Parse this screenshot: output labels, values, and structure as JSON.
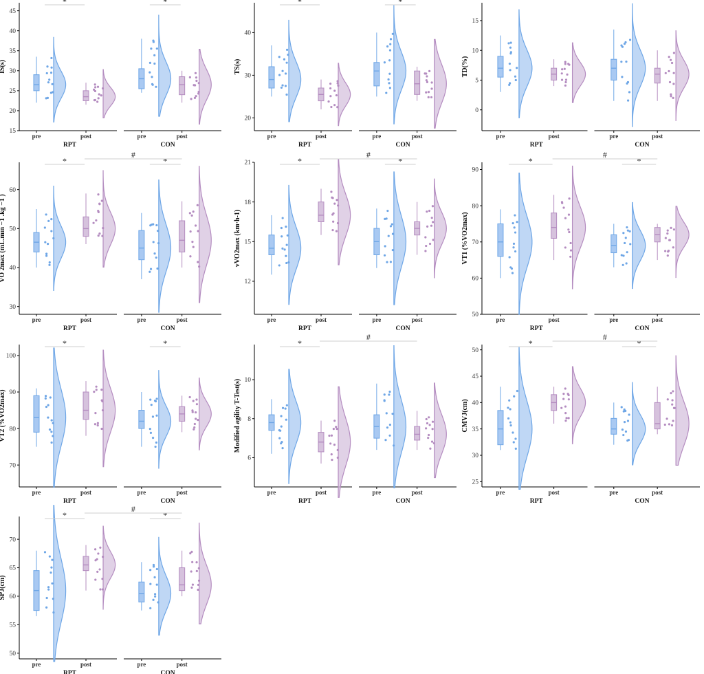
{
  "colors": {
    "pre": "#6ea6e6",
    "pre_fill": "#a9c9f2",
    "post": "#b48cc0",
    "post_fill": "#d6c2dd",
    "axis": "#000000"
  },
  "chart_data": [
    {
      "type": "raincloud",
      "ylabel": "IS(s)",
      "ylim": [
        15,
        47
      ],
      "yticks": [
        15,
        20,
        25,
        30,
        35,
        40,
        45
      ],
      "groups": [
        "RPT",
        "CON"
      ],
      "conditions": [
        "pre",
        "post"
      ],
      "within_sig": [
        "*",
        "*"
      ],
      "between_sig": "",
      "boxes": [
        {
          "group": "RPT",
          "cond": "pre",
          "min": 22,
          "q1": 25,
          "median": 26.5,
          "q3": 29,
          "max": 33.5
        },
        {
          "group": "RPT",
          "cond": "post",
          "min": 21.5,
          "q1": 22.5,
          "median": 23.5,
          "q3": 25,
          "max": 27
        },
        {
          "group": "CON",
          "cond": "pre",
          "min": 24.5,
          "q1": 25.5,
          "median": 28,
          "q3": 30.5,
          "max": 38
        },
        {
          "group": "CON",
          "cond": "post",
          "min": 22,
          "q1": 24,
          "median": 26.5,
          "q3": 28.5,
          "max": 30
        }
      ]
    },
    {
      "type": "raincloud",
      "ylabel": "TS(s)",
      "ylim": [
        17,
        47
      ],
      "yticks": [
        20,
        30,
        40
      ],
      "groups": [
        "RPT",
        "CON"
      ],
      "conditions": [
        "pre",
        "post"
      ],
      "within_sig": [
        "*",
        "*"
      ],
      "between_sig": "",
      "boxes": [
        {
          "group": "RPT",
          "cond": "pre",
          "min": 25,
          "q1": 27,
          "median": 29,
          "q3": 32,
          "max": 37
        },
        {
          "group": "RPT",
          "cond": "post",
          "min": 22,
          "q1": 24,
          "median": 25.5,
          "q3": 27,
          "max": 29
        },
        {
          "group": "CON",
          "cond": "pre",
          "min": 25,
          "q1": 27.5,
          "median": 31,
          "q3": 33,
          "max": 40
        },
        {
          "group": "CON",
          "cond": "post",
          "min": 24,
          "q1": 25.5,
          "median": 28,
          "q3": 31,
          "max": 32
        }
      ]
    },
    {
      "type": "raincloud",
      "ylabel": "TD(%)",
      "ylim": [
        -3.5,
        18
      ],
      "yticks": [
        0,
        5,
        10,
        15
      ],
      "groups": [
        "RPT",
        "CON"
      ],
      "conditions": [
        "pre",
        "post"
      ],
      "within_sig": [
        "",
        ""
      ],
      "between_sig": "",
      "boxes": [
        {
          "group": "RPT",
          "cond": "pre",
          "min": 3,
          "q1": 5.5,
          "median": 7,
          "q3": 9,
          "max": 12.5
        },
        {
          "group": "RPT",
          "cond": "post",
          "min": 4,
          "q1": 5,
          "median": 6,
          "q3": 7,
          "max": 8.5
        },
        {
          "group": "CON",
          "cond": "pre",
          "min": 1.5,
          "q1": 5,
          "median": 7,
          "q3": 8.5,
          "max": 13.5
        },
        {
          "group": "CON",
          "cond": "post",
          "min": 1.5,
          "q1": 4.5,
          "median": 6,
          "q3": 7,
          "max": 10
        }
      ]
    },
    {
      "type": "raincloud",
      "ylabel": "VO 2max (mL.min −1 .kg −1 )",
      "ylim": [
        28,
        67
      ],
      "yticks": [
        30,
        40,
        50,
        60
      ],
      "groups": [
        "RPT",
        "CON"
      ],
      "conditions": [
        "pre",
        "post"
      ],
      "within_sig": [
        "*",
        "*"
      ],
      "between_sig": "#",
      "boxes": [
        {
          "group": "RPT",
          "cond": "pre",
          "min": 40,
          "q1": 44,
          "median": 46.5,
          "q3": 49,
          "max": 55
        },
        {
          "group": "RPT",
          "cond": "post",
          "min": 46,
          "q1": 48,
          "median": 50,
          "q3": 53,
          "max": 59
        },
        {
          "group": "CON",
          "cond": "pre",
          "min": 37,
          "q1": 42,
          "median": 45,
          "q3": 49.5,
          "max": 54
        },
        {
          "group": "CON",
          "cond": "post",
          "min": 40,
          "q1": 44,
          "median": 47,
          "q3": 52,
          "max": 57
        }
      ]
    },
    {
      "type": "raincloud",
      "ylabel": "vVO2max (km·h-1)",
      "ylim": [
        9.5,
        21
      ],
      "yticks": [
        12,
        15,
        18,
        21
      ],
      "groups": [
        "RPT",
        "CON"
      ],
      "conditions": [
        "pre",
        "post"
      ],
      "within_sig": [
        "*",
        "*"
      ],
      "between_sig": "#",
      "boxes": [
        {
          "group": "RPT",
          "cond": "pre",
          "min": 12.5,
          "q1": 14,
          "median": 14.5,
          "q3": 15.5,
          "max": 17
        },
        {
          "group": "RPT",
          "cond": "post",
          "min": 15.5,
          "q1": 16.5,
          "median": 17,
          "q3": 18,
          "max": 19
        },
        {
          "group": "CON",
          "cond": "pre",
          "min": 13,
          "q1": 14,
          "median": 15,
          "q3": 16,
          "max": 17.5
        },
        {
          "group": "CON",
          "cond": "post",
          "min": 14,
          "q1": 15.5,
          "median": 16,
          "q3": 16.5,
          "max": 18
        }
      ]
    },
    {
      "type": "raincloud",
      "ylabel": "VT1 (%VO2max)",
      "ylim": [
        50,
        92
      ],
      "yticks": [
        50,
        60,
        70,
        80,
        90
      ],
      "groups": [
        "RPT",
        "CON"
      ],
      "conditions": [
        "pre",
        "post"
      ],
      "within_sig": [
        "*",
        "*"
      ],
      "between_sig": "#",
      "boxes": [
        {
          "group": "RPT",
          "cond": "pre",
          "min": 60,
          "q1": 66,
          "median": 70,
          "q3": 75,
          "max": 79
        },
        {
          "group": "RPT",
          "cond": "post",
          "min": 65,
          "q1": 71,
          "median": 74,
          "q3": 78,
          "max": 83
        },
        {
          "group": "CON",
          "cond": "pre",
          "min": 63,
          "q1": 67,
          "median": 69,
          "q3": 72,
          "max": 75
        },
        {
          "group": "CON",
          "cond": "post",
          "min": 65,
          "q1": 70,
          "median": 72,
          "q3": 74,
          "max": 75
        }
      ]
    },
    {
      "type": "raincloud",
      "ylabel": "VT2 (%VO2max)",
      "ylim": [
        64,
        103
      ],
      "yticks": [
        70,
        80,
        90,
        100
      ],
      "groups": [
        "RPT",
        "CON"
      ],
      "conditions": [
        "pre",
        "post"
      ],
      "within_sig": [
        "*",
        "*"
      ],
      "between_sig": "",
      "boxes": [
        {
          "group": "RPT",
          "cond": "pre",
          "min": 75,
          "q1": 79,
          "median": 83,
          "q3": 89,
          "max": 91
        },
        {
          "group": "RPT",
          "cond": "post",
          "min": 78,
          "q1": 82.5,
          "median": 85,
          "q3": 90,
          "max": 93
        },
        {
          "group": "CON",
          "cond": "pre",
          "min": 75,
          "q1": 80,
          "median": 82,
          "q3": 85,
          "max": 90
        },
        {
          "group": "CON",
          "cond": "post",
          "min": 79,
          "q1": 82,
          "median": 84,
          "q3": 86,
          "max": 89
        }
      ]
    },
    {
      "type": "raincloud",
      "ylabel": "Modified agility T-Test(s)",
      "ylim": [
        4.5,
        11.8
      ],
      "yticks": [
        6,
        8,
        10
      ],
      "groups": [
        "RPT",
        "CON"
      ],
      "conditions": [
        "pre",
        "post"
      ],
      "within_sig": [
        "*",
        ""
      ],
      "between_sig": "#",
      "boxes": [
        {
          "group": "RPT",
          "cond": "pre",
          "min": 6.2,
          "q1": 7.4,
          "median": 7.8,
          "q3": 8.2,
          "max": 9
        },
        {
          "group": "RPT",
          "cond": "post",
          "min": 5.7,
          "q1": 6.3,
          "median": 6.8,
          "q3": 7.3,
          "max": 7.9
        },
        {
          "group": "CON",
          "cond": "pre",
          "min": 6.4,
          "q1": 7.0,
          "median": 7.6,
          "q3": 8.2,
          "max": 9.8
        },
        {
          "group": "CON",
          "cond": "post",
          "min": 6.4,
          "q1": 6.9,
          "median": 7.2,
          "q3": 7.6,
          "max": 8.4
        }
      ]
    },
    {
      "type": "raincloud",
      "ylabel": "CMVJ(cm)",
      "ylim": [
        24,
        51
      ],
      "yticks": [
        25,
        30,
        35,
        40,
        45,
        50
      ],
      "groups": [
        "RPT",
        "CON"
      ],
      "conditions": [
        "pre",
        "post"
      ],
      "within_sig": [
        "*",
        "*"
      ],
      "between_sig": "#",
      "boxes": [
        {
          "group": "RPT",
          "cond": "pre",
          "min": 31,
          "q1": 32,
          "median": 35,
          "q3": 38.5,
          "max": 43
        },
        {
          "group": "RPT",
          "cond": "post",
          "min": 36,
          "q1": 38.5,
          "median": 40,
          "q3": 41.5,
          "max": 43
        },
        {
          "group": "CON",
          "cond": "pre",
          "min": 32,
          "q1": 34,
          "median": 35,
          "q3": 37,
          "max": 40
        },
        {
          "group": "CON",
          "cond": "post",
          "min": 34,
          "q1": 35,
          "median": 36,
          "q3": 40,
          "max": 43
        }
      ]
    },
    {
      "type": "raincloud",
      "ylabel": "SPJ(cm)",
      "ylim": [
        49,
        74
      ],
      "yticks": [
        50,
        55,
        60,
        65,
        70
      ],
      "groups": [
        "RPT",
        "CON"
      ],
      "conditions": [
        "pre",
        "post"
      ],
      "within_sig": [
        "*",
        "*"
      ],
      "between_sig": "#",
      "boxes": [
        {
          "group": "RPT",
          "cond": "pre",
          "min": 56.5,
          "q1": 57.5,
          "median": 61,
          "q3": 64.5,
          "max": 68
        },
        {
          "group": "RPT",
          "cond": "post",
          "min": 61,
          "q1": 64.5,
          "median": 65.5,
          "q3": 67,
          "max": 69
        },
        {
          "group": "CON",
          "cond": "pre",
          "min": 57.5,
          "q1": 59,
          "median": 60.5,
          "q3": 62.5,
          "max": 66
        },
        {
          "group": "CON",
          "cond": "post",
          "min": 60,
          "q1": 61,
          "median": 62,
          "q3": 65,
          "max": 68
        }
      ]
    }
  ]
}
